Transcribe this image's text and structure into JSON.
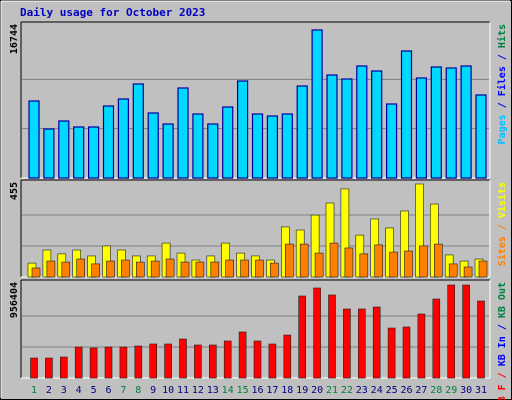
{
  "chart_data": {
    "type": "bar",
    "title": "Daily usage for October 2023",
    "categories": [
      "1",
      "2",
      "3",
      "4",
      "5",
      "6",
      "7",
      "8",
      "9",
      "10",
      "11",
      "12",
      "13",
      "14",
      "15",
      "16",
      "17",
      "18",
      "19",
      "20",
      "21",
      "22",
      "23",
      "24",
      "25",
      "26",
      "27",
      "28",
      "29",
      "30",
      "31"
    ],
    "category_colors": [
      "#008040",
      "#000080",
      "#000080",
      "#000080",
      "#000080",
      "#000080",
      "#008040",
      "#008040",
      "#000080",
      "#000080",
      "#000080",
      "#000080",
      "#000080",
      "#008040",
      "#008040",
      "#000080",
      "#000080",
      "#000080",
      "#000080",
      "#000080",
      "#008040",
      "#008040",
      "#000080",
      "#000080",
      "#000080",
      "#000080",
      "#000080",
      "#008040",
      "#008040",
      "#000080",
      "#000080"
    ],
    "panels": [
      {
        "ylim": [
          0,
          16744
        ],
        "legend": [
          {
            "text": "Pages",
            "color": "#00c0ff"
          },
          {
            "text": " / ",
            "color": "#0000ff"
          },
          {
            "text": "Files",
            "color": "#0000ff"
          },
          {
            "text": " / ",
            "color": "#0000ff"
          },
          {
            "text": "Hits",
            "color": "#008040"
          }
        ],
        "series": [
          {
            "name": "Files",
            "color": "#00d8ff",
            "values": [
              8711,
              5544,
              6449,
              5770,
              5770,
              8146,
              8938,
              10635,
              7354,
              6109,
              10182,
              7241,
              6109,
              8032,
              10974,
              7241,
              7014,
              7241,
              10408,
              16744,
              11653,
              11200,
              12671,
              12105,
              8372,
              14368,
              11313,
              12558,
              12445,
              12671,
              9390
            ]
          }
        ]
      },
      {
        "ylim": [
          0,
          455
        ],
        "legend": [
          {
            "text": "Sites",
            "color": "#ff8000"
          },
          {
            "text": " / ",
            "color": "#ff8000"
          },
          {
            "text": "Visits",
            "color": "#ffff00"
          }
        ],
        "series": [
          {
            "name": "Visits",
            "color": "#ffff00",
            "values": [
              68,
              132,
              113,
              132,
              103,
              152,
              132,
              103,
              103,
              166,
              117,
              83,
              103,
              166,
              117,
              103,
              83,
              245,
              230,
              303,
              362,
              431,
              205,
              284,
              240,
              323,
              455,
              357,
              108,
              78,
              88
            ]
          },
          {
            "name": "Sites",
            "color": "#ff8000",
            "values": [
              44,
              78,
              73,
              88,
              64,
              78,
              83,
              73,
              78,
              88,
              73,
              73,
              73,
              83,
              83,
              83,
              68,
              161,
              161,
              117,
              166,
              142,
              113,
              157,
              122,
              127,
              152,
              161,
              64,
              49,
              78
            ]
          }
        ]
      },
      {
        "ylim": [
          0,
          956404
        ],
        "legend": [
          {
            "text": "KB F",
            "color": "#ff0000"
          },
          {
            "text": " / ",
            "color": "#ff0000"
          },
          {
            "text": "KB In",
            "color": "#0000ff"
          },
          {
            "text": " / ",
            "color": "#0000ff"
          },
          {
            "text": "KB Out",
            "color": "#008040"
          }
        ],
        "series": [
          {
            "name": "KB F",
            "color": "#ff0000",
            "values": [
              205700,
              205700,
              216000,
              318800,
              308500,
              318800,
              318800,
              329100,
              349700,
              349700,
              401100,
              339400,
              339400,
              380500,
              473100,
              380500,
              349700,
              442200,
              843300,
              925600,
              853600,
              709600,
              709600,
              730200,
              514200,
              524500,
              658200,
              812400,
              956404,
              956400,
              791900
            ]
          }
        ]
      }
    ]
  }
}
